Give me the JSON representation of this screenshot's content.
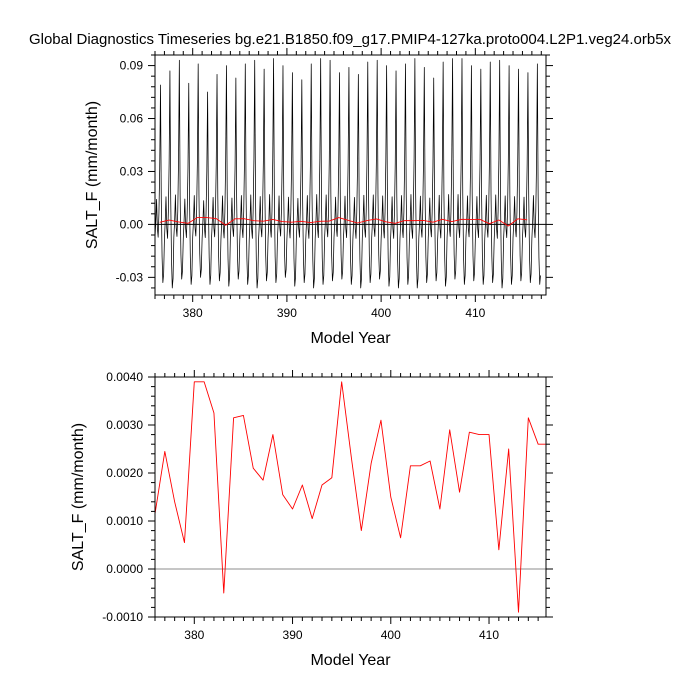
{
  "figure_title": "Global Diagnostics Timeseries bg.e21.B1850.f09_g17.PMIP4-127ka.proto004.L2P1.veg24.orb5x",
  "colors": {
    "monthly": "#000000",
    "annual": "#ff0000",
    "zero_line": "#000000"
  },
  "chart_data": [
    {
      "type": "line",
      "xlabel": "Model Year",
      "ylabel": "SALT_F (mm/month)",
      "xlim": [
        376,
        417.5
      ],
      "ylim": [
        -0.04,
        0.096
      ],
      "x_ticks": [
        380,
        390,
        400,
        410
      ],
      "x_tick_labels": [
        "380",
        "390",
        "400",
        "410"
      ],
      "y_ticks": [
        -0.03,
        0,
        0.03,
        0.06,
        0.09
      ],
      "y_tick_labels": [
        "-0.03",
        "0.00",
        "0.03",
        "0.06",
        "0.09"
      ],
      "zero_line": true,
      "series": [
        {
          "color": "#000000",
          "x_start": 376.0,
          "x_step_years": 0.0833333,
          "peaks": [
            0.079,
            0.087,
            0.093,
            0.08,
            0.091,
            0.075,
            0.085,
            0.09,
            0.083,
            0.091,
            0.093,
            0.088,
            0.094,
            0.09,
            0.086,
            0.082,
            0.091,
            0.094,
            0.093,
            0.086,
            0.089,
            0.085,
            0.092,
            0.093,
            0.09,
            0.087,
            0.091,
            0.094,
            0.089,
            0.083,
            0.092,
            0.094,
            0.094,
            0.09,
            0.088,
            0.092,
            0.093,
            0.09,
            0.088,
            0.086,
            0.091
          ],
          "troughs": [
            -0.033,
            -0.036,
            -0.031,
            -0.034,
            -0.03,
            -0.034,
            -0.032,
            -0.035,
            -0.031,
            -0.034,
            -0.036,
            -0.032,
            -0.033,
            -0.03,
            -0.035,
            -0.033,
            -0.036,
            -0.034,
            -0.032,
            -0.031,
            -0.034,
            -0.036,
            -0.033,
            -0.031,
            -0.035,
            -0.036,
            -0.034,
            -0.036,
            -0.033,
            -0.032,
            -0.035,
            -0.031,
            -0.034,
            -0.032,
            -0.034,
            -0.033,
            -0.036,
            -0.034,
            -0.032,
            -0.033,
            -0.034
          ],
          "monthly_shape": [
            -0.24,
            0.02,
            0.18,
            -0.06,
            -0.22,
            0.08,
            0.4,
            1.0,
            0.18,
            -0.55,
            -1.0,
            -0.85
          ]
        },
        {
          "color": "#ff0000",
          "x": [
            376.5,
            377.5,
            378.5,
            379.5,
            380.5,
            381.5,
            382.5,
            383.5,
            384.5,
            385.5,
            386.5,
            387.5,
            388.5,
            389.5,
            390.5,
            391.5,
            392.5,
            393.5,
            394.5,
            395.5,
            396.5,
            397.5,
            398.5,
            399.5,
            400.5,
            401.5,
            402.5,
            403.5,
            404.5,
            405.5,
            406.5,
            407.5,
            408.5,
            409.5,
            410.5,
            411.5,
            412.5,
            413.5,
            414.5,
            415.5
          ],
          "y": [
            0.0012,
            0.00245,
            0.0014,
            0.0006,
            0.0039,
            0.0039,
            0.0033,
            -0.0005,
            0.00315,
            0.0032,
            0.0021,
            0.00185,
            0.0028,
            0.0016,
            0.00125,
            0.00175,
            0.00105,
            0.00175,
            0.0019,
            0.0039,
            0.0023,
            0.0008,
            0.0022,
            0.0031,
            0.0015,
            0.00065,
            0.00215,
            0.00215,
            0.00225,
            0.00125,
            0.0029,
            0.0016,
            0.00285,
            0.0028,
            0.0028,
            0.0004,
            0.0025,
            -0.0009,
            0.00315,
            0.0026
          ]
        }
      ]
    },
    {
      "type": "line",
      "xlabel": "Model Year",
      "ylabel": "SALT_F (mm/month)",
      "xlim": [
        376,
        415.8
      ],
      "ylim": [
        -0.001,
        0.004
      ],
      "x_ticks": [
        380,
        390,
        400,
        410
      ],
      "x_tick_labels": [
        "380",
        "390",
        "400",
        "410"
      ],
      "y_ticks": [
        -0.001,
        0,
        0.001,
        0.002,
        0.003,
        0.004
      ],
      "y_tick_labels": [
        "-0.0010",
        "0.0000",
        "0.0010",
        "0.0020",
        "0.0030",
        "0.0040"
      ],
      "zero_line": true,
      "series": [
        {
          "color": "#ff0000",
          "x": [
            376,
            377,
            378,
            379,
            380,
            381,
            382,
            383,
            384,
            385,
            386,
            387,
            388,
            389,
            390,
            391,
            392,
            393,
            394,
            395,
            396,
            397,
            398,
            399,
            400,
            401,
            402,
            403,
            404,
            405,
            406,
            407,
            408,
            409,
            410,
            411,
            412,
            413,
            414,
            415,
            415.8
          ],
          "y": [
            0.00115,
            0.00245,
            0.0014,
            0.00055,
            0.0039,
            0.0039,
            0.00325,
            -0.0005,
            0.00315,
            0.0032,
            0.0021,
            0.00185,
            0.0028,
            0.00155,
            0.00125,
            0.00175,
            0.00105,
            0.00175,
            0.0019,
            0.0039,
            0.0023,
            0.0008,
            0.0022,
            0.0031,
            0.0015,
            0.00065,
            0.00215,
            0.00215,
            0.00225,
            0.00125,
            0.0029,
            0.0016,
            0.00285,
            0.0028,
            0.0028,
            0.0004,
            0.0025,
            -0.0009,
            0.00315,
            0.0026,
            0.0026
          ]
        }
      ]
    }
  ]
}
